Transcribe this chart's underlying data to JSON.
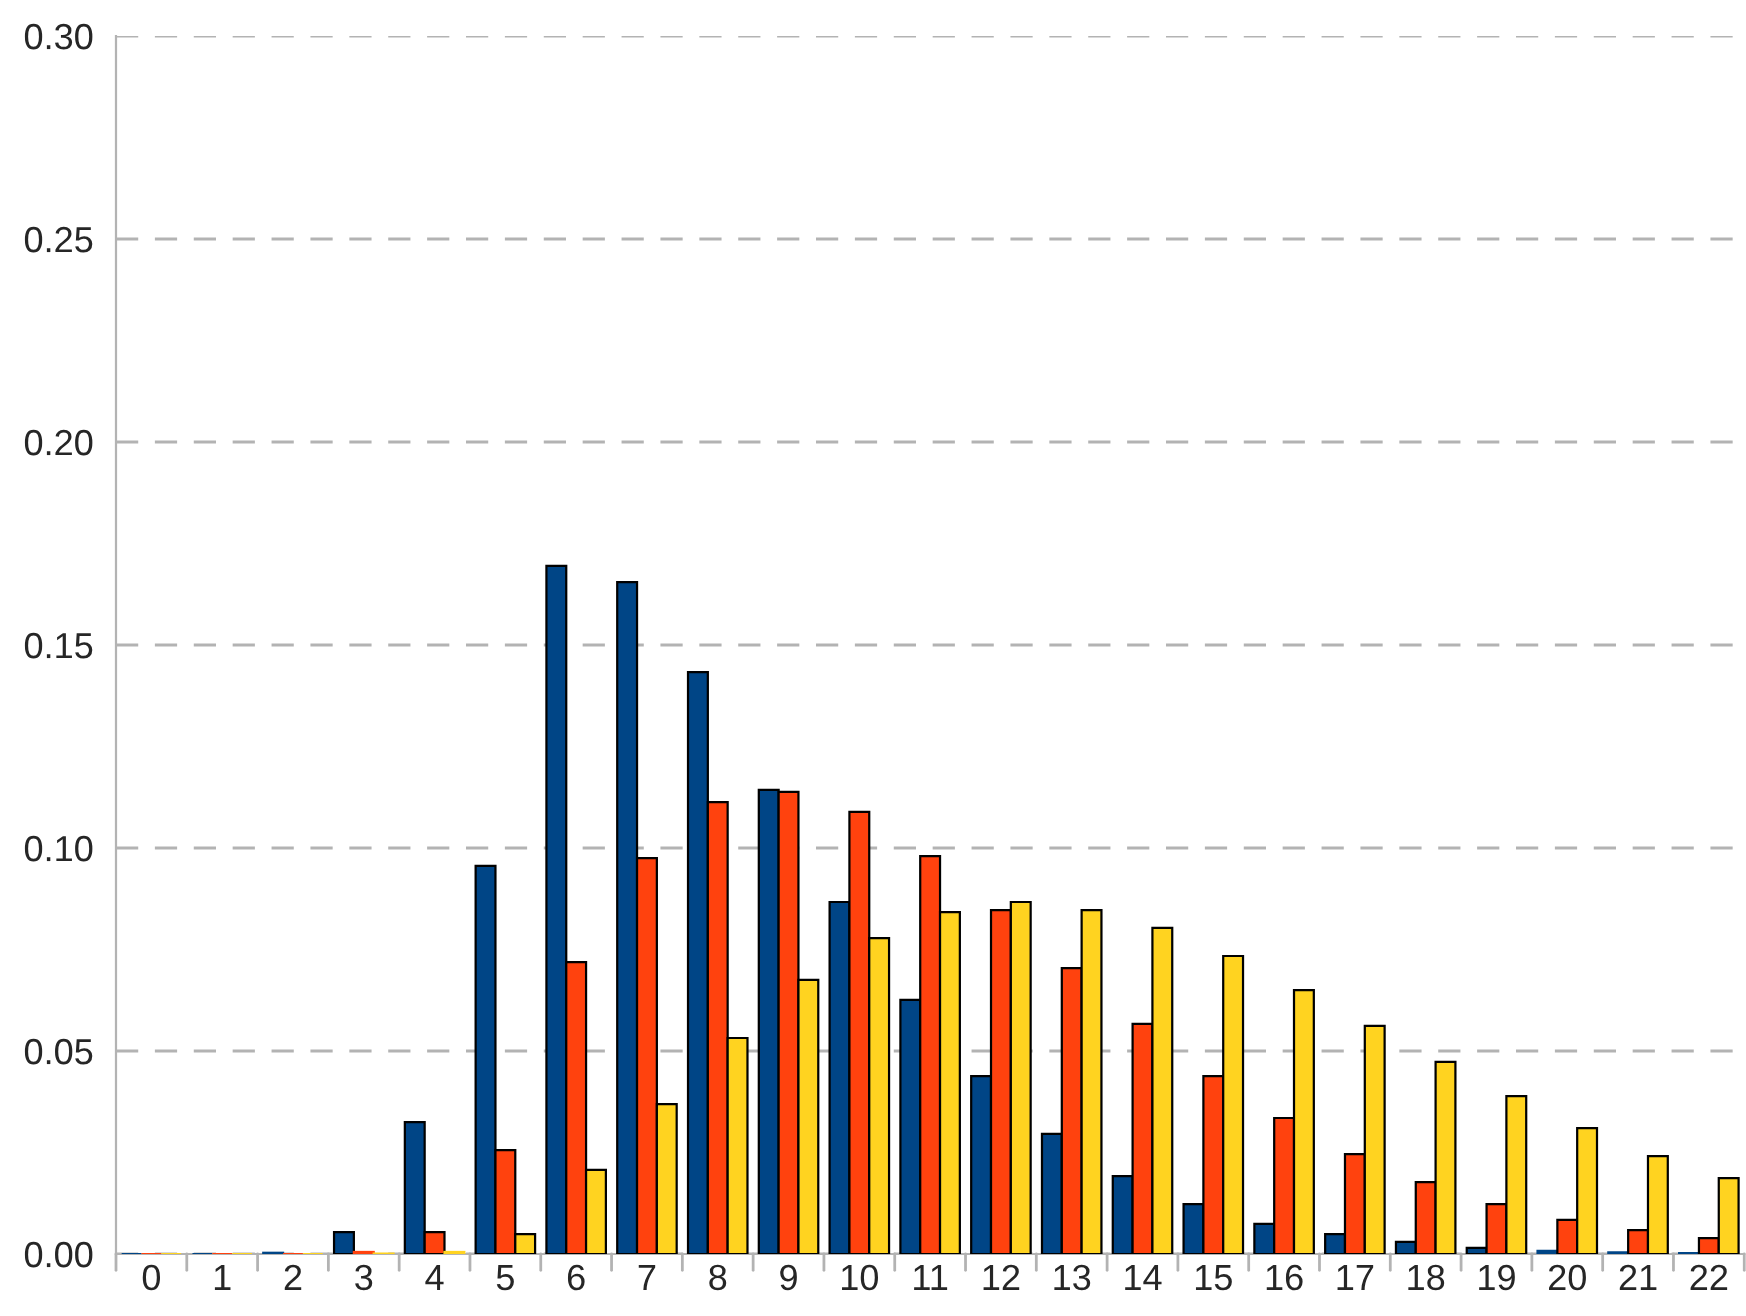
{
  "chart_data": {
    "type": "bar",
    "categories": [
      "0",
      "1",
      "2",
      "3",
      "4",
      "5",
      "6",
      "7",
      "8",
      "9",
      "10",
      "11",
      "12",
      "13",
      "14",
      "15",
      "16",
      "17",
      "18",
      "19",
      "20",
      "21",
      "22"
    ],
    "series": [
      {
        "color": "#004586",
        "values": [
          0,
          0,
          0.0003,
          0.0054,
          0.0325,
          0.0956,
          0.1695,
          0.1655,
          0.1433,
          0.1143,
          0.0867,
          0.0626,
          0.0438,
          0.0296,
          0.0192,
          0.0123,
          0.0074,
          0.0049,
          0.003,
          0.0015,
          0.0008,
          0.0004,
          0.0002
        ]
      },
      {
        "color": "#ff420e",
        "values": [
          0,
          0,
          0,
          0.0005,
          0.0054,
          0.0256,
          0.0719,
          0.0975,
          0.1113,
          0.1138,
          0.1089,
          0.098,
          0.0847,
          0.0704,
          0.0567,
          0.0438,
          0.0335,
          0.0246,
          0.0177,
          0.0123,
          0.0084,
          0.0059,
          0.0039
        ]
      },
      {
        "color": "#ffd320",
        "values": [
          0,
          0,
          0,
          0.0001,
          0.0005,
          0.0049,
          0.0207,
          0.0369,
          0.0532,
          0.0675,
          0.0778,
          0.0842,
          0.0867,
          0.0847,
          0.0803,
          0.0734,
          0.065,
          0.0562,
          0.0473,
          0.0389,
          0.031,
          0.0241,
          0.0187
        ]
      }
    ],
    "ylim": [
      0,
      0.3
    ],
    "yticks": [
      {
        "value": 0,
        "label": "0.00"
      },
      {
        "value": 0.05,
        "label": "0.05"
      },
      {
        "value": 0.1,
        "label": "0.10"
      },
      {
        "value": 0.15,
        "label": "0.15"
      },
      {
        "value": 0.2,
        "label": "0.20"
      },
      {
        "value": 0.25,
        "label": "0.25"
      },
      {
        "value": 0.3,
        "label": "0.30"
      }
    ],
    "grid": "y",
    "legend": false
  }
}
